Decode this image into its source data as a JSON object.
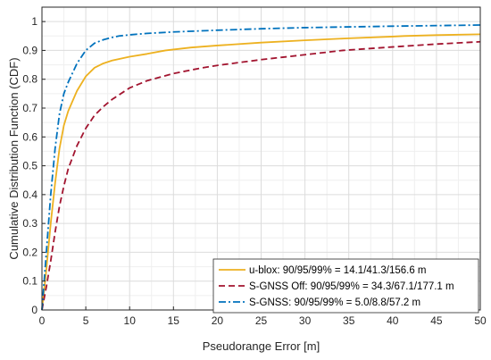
{
  "chart_data": {
    "type": "line",
    "xlabel": "Pseudorange Error [m]",
    "ylabel": "Cumulative Distribution Function (CDF)",
    "xlim": [
      0,
      50
    ],
    "ylim": [
      0,
      1.05
    ],
    "xticks": [
      0,
      5,
      10,
      15,
      20,
      25,
      30,
      35,
      40,
      45,
      50
    ],
    "yticks": [
      0,
      0.1,
      0.2,
      0.3,
      0.4,
      0.5,
      0.6,
      0.7,
      0.8,
      0.9,
      1
    ],
    "xtick_labels": [
      "0",
      "5",
      "10",
      "15",
      "20",
      "25",
      "30",
      "35",
      "40",
      "45",
      "50"
    ],
    "ytick_labels": [
      "0",
      "0.1",
      "0.2",
      "0.3",
      "0.4",
      "0.5",
      "0.6",
      "0.7",
      "0.8",
      "0.9",
      "1"
    ],
    "grid": true,
    "legend_position": "bottom-right",
    "series": [
      {
        "name": "u-blox: 90/95/99% = 14.1/41.3/156.6 m",
        "color": "#EDB120",
        "line_style": "solid",
        "x": [
          0,
          0.5,
          1,
          1.5,
          2,
          2.5,
          3,
          4,
          5,
          6,
          7,
          8,
          10,
          12,
          14.1,
          17,
          20,
          25,
          30,
          35,
          40,
          41.3,
          45,
          50
        ],
        "y": [
          0,
          0.14,
          0.3,
          0.44,
          0.56,
          0.64,
          0.69,
          0.76,
          0.81,
          0.84,
          0.855,
          0.865,
          0.878,
          0.888,
          0.9,
          0.91,
          0.917,
          0.927,
          0.935,
          0.942,
          0.948,
          0.95,
          0.953,
          0.956
        ]
      },
      {
        "name": "S-GNSS Off: 90/95/99% = 34.3/67.1/177.1 m",
        "color": "#A2142F",
        "line_style": "dashed",
        "x": [
          0,
          0.5,
          1,
          1.5,
          2,
          2.5,
          3,
          4,
          5,
          6,
          7,
          8,
          10,
          12,
          15,
          18,
          20,
          25,
          30,
          34.3,
          40,
          45,
          50
        ],
        "y": [
          0,
          0.08,
          0.17,
          0.27,
          0.36,
          0.43,
          0.49,
          0.57,
          0.63,
          0.675,
          0.705,
          0.73,
          0.77,
          0.795,
          0.82,
          0.838,
          0.848,
          0.868,
          0.885,
          0.9,
          0.912,
          0.922,
          0.93
        ]
      },
      {
        "name": "S-GNSS: 90/95/99% = 5.0/8.8/57.2 m",
        "color": "#0072BD",
        "line_style": "dashdot",
        "x": [
          0,
          0.5,
          1,
          1.5,
          2,
          2.5,
          3,
          4,
          5,
          6,
          7,
          8,
          8.8,
          10,
          12,
          15,
          20,
          25,
          30,
          40,
          50
        ],
        "y": [
          0,
          0.2,
          0.4,
          0.56,
          0.68,
          0.75,
          0.79,
          0.855,
          0.9,
          0.925,
          0.937,
          0.945,
          0.95,
          0.954,
          0.959,
          0.964,
          0.97,
          0.975,
          0.979,
          0.984,
          0.988
        ]
      }
    ]
  }
}
